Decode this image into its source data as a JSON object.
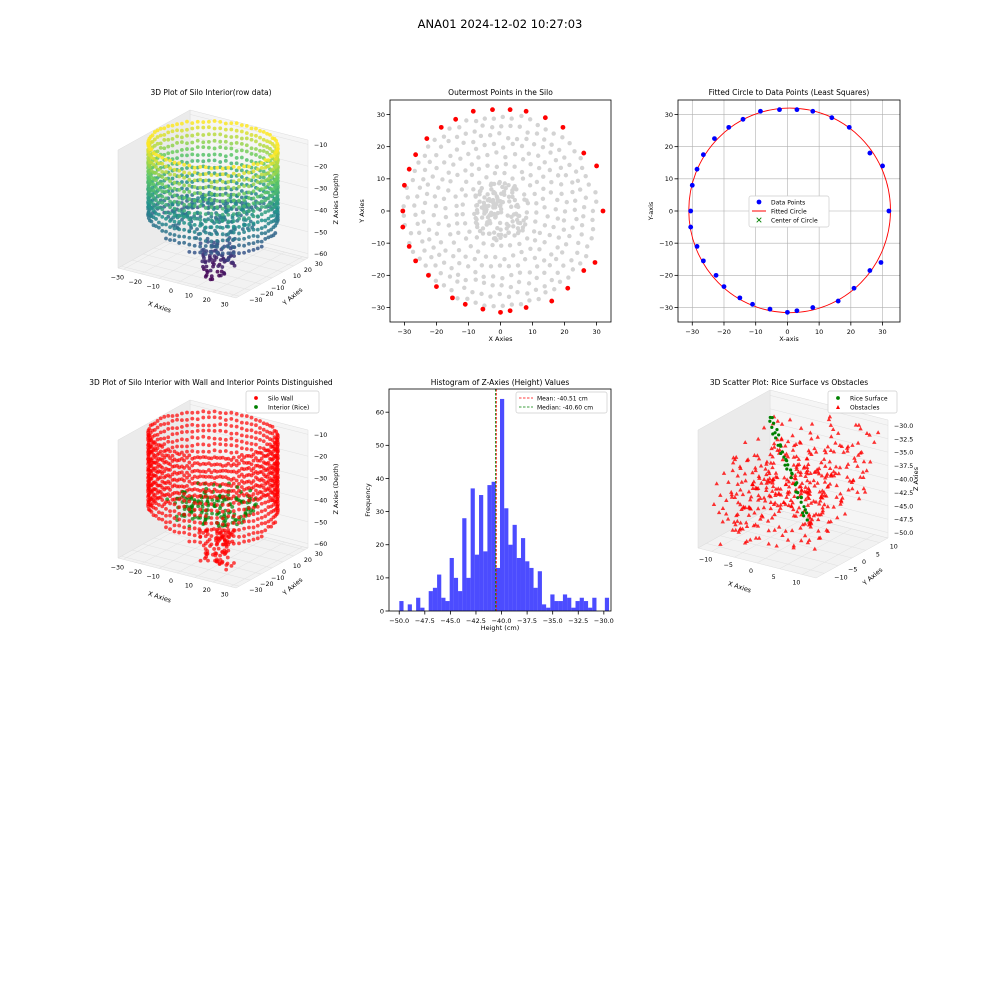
{
  "figure": {
    "title": "ANA01 2024-12-02 10:27:03"
  },
  "chart_data": [
    {
      "type": "scatter",
      "id": "silo-3d-raw",
      "title": "3D Plot of Silo Interior(row data)",
      "xlabel": "X Axies",
      "ylabel": "Y Axies",
      "zlabel": "Z Axies (Depth)",
      "x_ticks": [
        "−30",
        "−20",
        "−10",
        "0",
        "10",
        "20",
        "30"
      ],
      "y_ticks": [
        "30",
        "20",
        "10",
        "0",
        "−10",
        "−20",
        "−30"
      ],
      "z_ticks": [
        "−10",
        "−20",
        "−30",
        "−40",
        "−50",
        "−60"
      ],
      "xlim": [
        -33,
        33
      ],
      "ylim": [
        -33,
        33
      ],
      "zlim": [
        -62,
        -8
      ],
      "colormap": [
        "#440154",
        "#3b528b",
        "#21918c",
        "#5ec962",
        "#fde725"
      ],
      "wall_radius": 31,
      "wall_z": [
        -50,
        -8
      ],
      "rice_radius": 22,
      "rice_z": [
        -44,
        -36
      ],
      "drain": {
        "center": [
          10,
          -12
        ],
        "z": [
          -62,
          -45
        ]
      }
    },
    {
      "type": "scatter",
      "id": "outermost-points",
      "title": "Outermost Points in the Silo",
      "xlabel": "X Axies",
      "ylabel": "Y Axies",
      "x_ticks": [
        -30,
        -20,
        -10,
        0,
        10,
        20,
        30
      ],
      "y_ticks": [
        30,
        20,
        10,
        0,
        -10,
        -20,
        -30
      ],
      "xlim": [
        -34.5,
        34.5
      ],
      "ylim": [
        -34.5,
        34.5
      ],
      "series": [
        {
          "color": "#d3d3d3",
          "rings": [
            29.5,
            26.5,
            23.5,
            20.5,
            17.5,
            14.5,
            11.5,
            8.5,
            5.5
          ]
        },
        {
          "color": "#ff0000",
          "points": [
            [
              -30,
              8
            ],
            [
              -30.5,
              0
            ],
            [
              -30.5,
              -5
            ],
            [
              -28.5,
              -11
            ],
            [
              -28.5,
              13
            ],
            [
              -26.5,
              17.5
            ],
            [
              -26.5,
              -15.5
            ],
            [
              -23,
              22.5
            ],
            [
              -22.5,
              -20
            ],
            [
              -18.5,
              26
            ],
            [
              -20,
              -23.5
            ],
            [
              -14,
              28.5
            ],
            [
              -15,
              -27
            ],
            [
              -11,
              -29
            ],
            [
              -8.5,
              31
            ],
            [
              -5.5,
              -30.5
            ],
            [
              -2.5,
              31.5
            ],
            [
              0,
              -31.5
            ],
            [
              3,
              31.5
            ],
            [
              3,
              -31
            ],
            [
              8,
              31
            ],
            [
              8,
              -30
            ],
            [
              14,
              29
            ],
            [
              16,
              -28
            ],
            [
              19.5,
              26
            ],
            [
              21,
              -24
            ],
            [
              26,
              18
            ],
            [
              26,
              -18.5
            ],
            [
              30,
              14
            ],
            [
              29.5,
              -16
            ],
            [
              32,
              0
            ]
          ]
        }
      ]
    },
    {
      "type": "scatter",
      "id": "fitted-circle",
      "title": "Fitted Circle to Data Points (Least Squares)",
      "xlabel": "X-axis",
      "ylabel": "Y-axis",
      "x_ticks": [
        -30,
        -20,
        -10,
        0,
        10,
        20,
        30
      ],
      "y_ticks": [
        30,
        20,
        10,
        0,
        -10,
        -20,
        -30
      ],
      "xlim": [
        -34.5,
        35.5
      ],
      "ylim": [
        -34.5,
        34.5
      ],
      "legend": {
        "placement": "center",
        "entries": [
          "Data Points",
          "Fitted Circle",
          "Center of Circle"
        ]
      },
      "series": [
        {
          "name": "Data Points",
          "color": "#0000ff",
          "points": [
            [
              -30,
              8
            ],
            [
              -30.5,
              0
            ],
            [
              -30.5,
              -5
            ],
            [
              -28.5,
              -11
            ],
            [
              -28.5,
              13
            ],
            [
              -26.5,
              17.5
            ],
            [
              -26.5,
              -15.5
            ],
            [
              -23,
              22.5
            ],
            [
              -22.5,
              -20
            ],
            [
              -18.5,
              26
            ],
            [
              -20,
              -23.5
            ],
            [
              -14,
              28.5
            ],
            [
              -15,
              -27
            ],
            [
              -11,
              -29
            ],
            [
              -8.5,
              31
            ],
            [
              -5.5,
              -30.5
            ],
            [
              -2.5,
              31.5
            ],
            [
              0,
              -31.5
            ],
            [
              3,
              31.5
            ],
            [
              3,
              -31
            ],
            [
              8,
              31
            ],
            [
              8,
              -30
            ],
            [
              14,
              29
            ],
            [
              16,
              -28
            ],
            [
              19.5,
              26
            ],
            [
              21,
              -24
            ],
            [
              26,
              18
            ],
            [
              26,
              -18.5
            ],
            [
              30,
              14
            ],
            [
              29.5,
              -16
            ],
            [
              32,
              0
            ]
          ]
        },
        {
          "name": "Fitted Circle",
          "color": "#ff0000",
          "center": [
            0.7,
            0.2
          ],
          "radius": 31.8
        },
        {
          "name": "Center of Circle",
          "color": "#008000",
          "points": [
            [
              0.7,
              0.2
            ]
          ]
        }
      ]
    },
    {
      "type": "scatter",
      "id": "silo-3d-wall-interior",
      "title": "3D Plot of Silo Interior with Wall and Interior Points Distinguished",
      "xlabel": "X Axies",
      "ylabel": "Y Axies",
      "zlabel": "Z Axies (Depth)",
      "x_ticks": [
        "−30",
        "−20",
        "−10",
        "0",
        "10",
        "20",
        "30"
      ],
      "y_ticks": [
        "30",
        "20",
        "10",
        "0",
        "−10",
        "−20",
        "−30"
      ],
      "z_ticks": [
        "−10",
        "−20",
        "−30",
        "−40",
        "−50",
        "−60"
      ],
      "xlim": [
        -33,
        33
      ],
      "ylim": [
        -33,
        33
      ],
      "zlim": [
        -62,
        -8
      ],
      "legend": {
        "placement": "upper-right",
        "entries": [
          {
            "label": "Silo Wall",
            "color": "#ff0000"
          },
          {
            "label": "Interior (Rice)",
            "color": "#008000"
          }
        ]
      },
      "wall_radius": 31,
      "wall_z": [
        -50,
        -8
      ],
      "rice_radius": 22,
      "rice_z": [
        -44,
        -36
      ],
      "drain": {
        "center": [
          10,
          -12
        ],
        "z": [
          -62,
          -45
        ]
      }
    },
    {
      "type": "bar",
      "id": "z-histogram",
      "title": "Histogram of Z-Axies (Height) Values",
      "xlabel": "Height (cm)",
      "ylabel": "Frequency",
      "x_ticks": [
        "−50.0",
        "−47.5",
        "−45.0",
        "−42.5",
        "−40.0",
        "−37.5",
        "−35.0",
        "−32.5",
        "−30.0"
      ],
      "x_tick_values": [
        -50,
        -47.5,
        -45,
        -42.5,
        -40,
        -37.5,
        -35,
        -32.5,
        -30
      ],
      "y_ticks": [
        0,
        10,
        20,
        30,
        40,
        50,
        60
      ],
      "xlim": [
        -51,
        -29.3
      ],
      "ylim": [
        0,
        67
      ],
      "bin_start": -50.4,
      "bin_width": 0.41,
      "values": [
        0,
        3,
        0,
        2,
        0,
        4,
        1,
        0,
        6,
        7,
        11,
        4,
        3,
        16,
        10,
        6,
        28,
        10,
        37,
        17,
        35,
        18,
        38,
        39,
        13,
        64,
        31,
        20,
        26,
        16,
        22,
        15,
        13,
        7,
        12,
        2,
        1,
        5,
        3,
        3,
        5,
        4,
        1,
        3,
        4,
        3,
        1,
        4,
        0,
        0,
        4
      ],
      "color": "#0000ff",
      "mean": -40.51,
      "median": -40.6,
      "legend": {
        "placement": "upper-right",
        "entries": [
          {
            "label": "Mean: -40.51 cm",
            "color": "#ff0000"
          },
          {
            "label": "Median: -40.60 cm",
            "color": "#008000"
          }
        ]
      }
    },
    {
      "type": "scatter",
      "id": "rice-vs-obstacles",
      "title": "3D Scatter Plot: Rice Surface vs Obstacles",
      "xlabel": "X Axies",
      "ylabel": "Y Axies",
      "zlabel": "Z Axies",
      "x_ticks": [
        "−10",
        "−5",
        "0",
        "5",
        "10"
      ],
      "y_ticks": [
        "10",
        "5",
        "0",
        "−5",
        "−10"
      ],
      "z_ticks": [
        "−30.0",
        "−32.5",
        "−35.0",
        "−37.5",
        "−40.0",
        "−42.5",
        "−45.0",
        "−47.5",
        "−50.0"
      ],
      "xlim": [
        -13,
        13
      ],
      "ylim": [
        -13,
        13
      ],
      "zlim": [
        -51,
        -29
      ],
      "legend": {
        "placement": "upper-right",
        "entries": [
          {
            "label": "Rice Surface",
            "color": "#008000"
          },
          {
            "label": "Obstacles",
            "color": "#ff0000"
          }
        ]
      }
    }
  ]
}
